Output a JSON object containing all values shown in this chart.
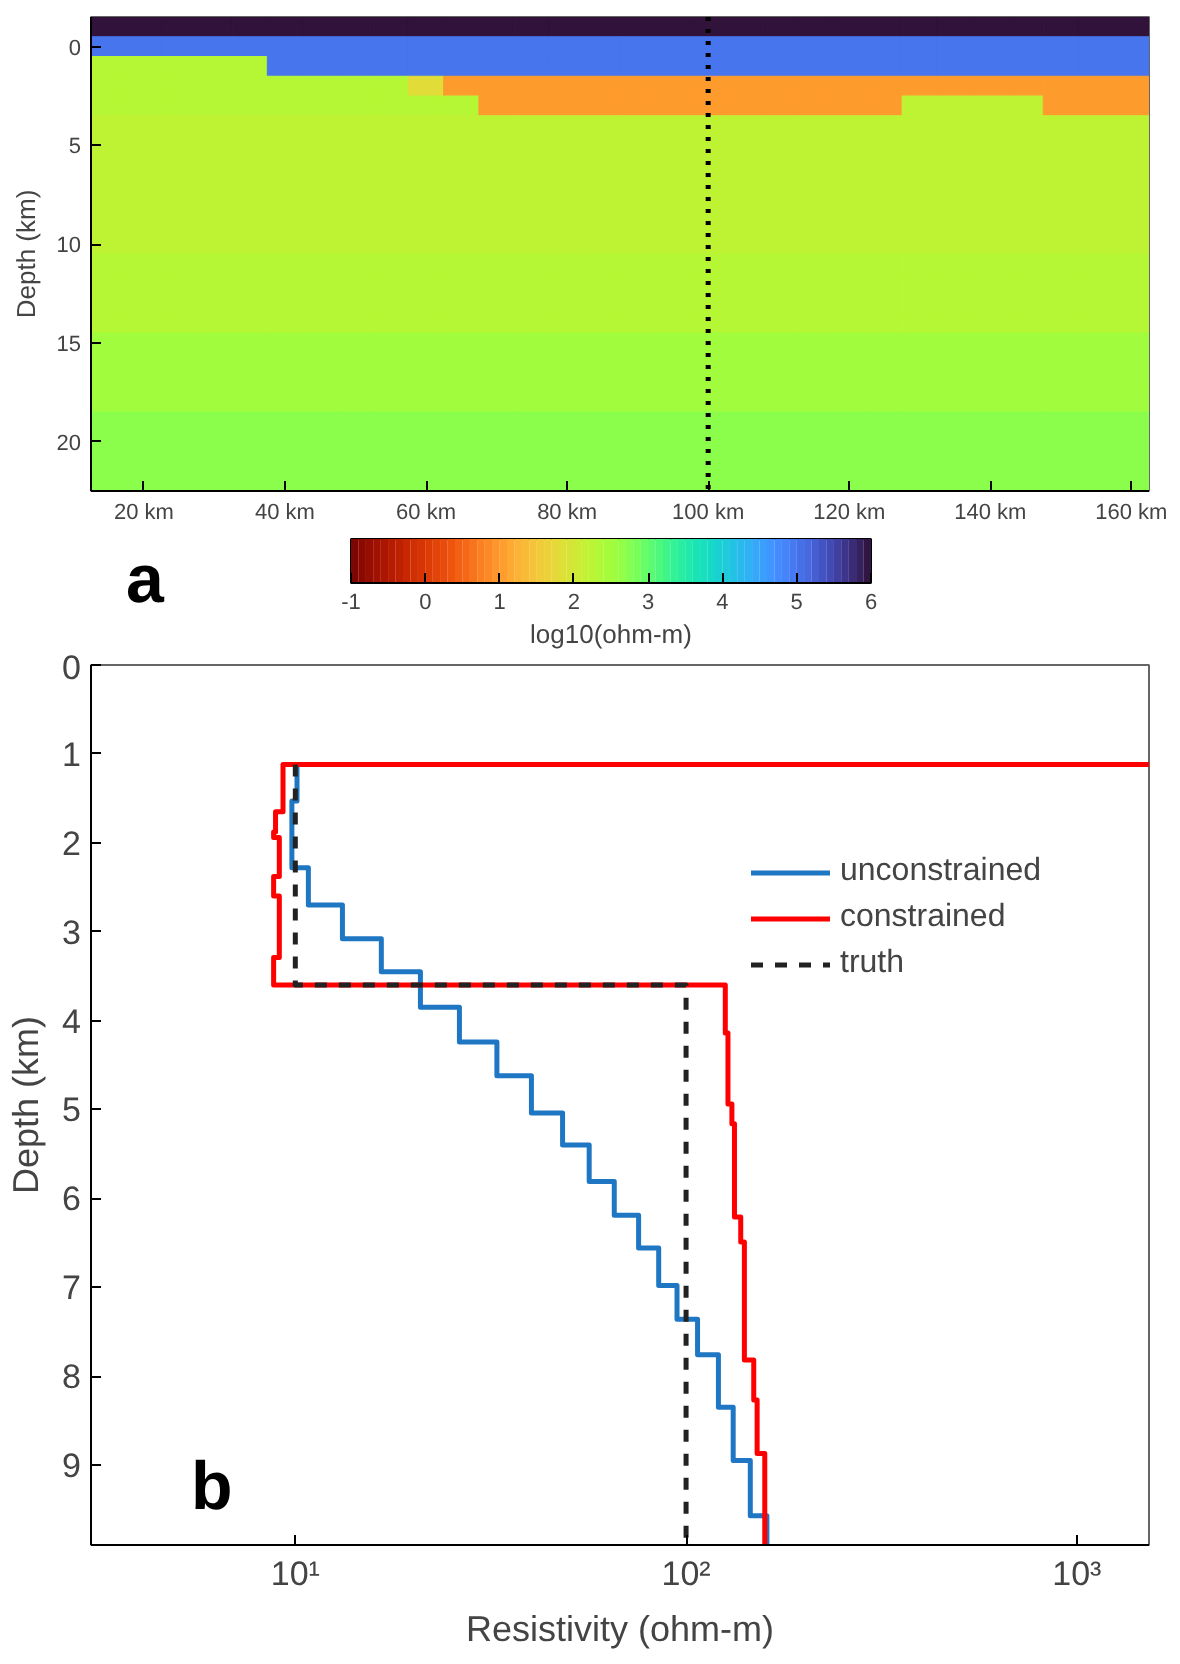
{
  "chart_data": [
    {
      "type": "heatmap",
      "ylabel": "Depth (km)",
      "clabel": "log10(ohm-m)",
      "categories": [
        null,
        "20 km",
        null,
        null,
        null,
        "40 km",
        null,
        null,
        null,
        "60 km",
        null,
        null,
        null,
        "80 km",
        null,
        null,
        null,
        "100 km",
        null,
        null,
        null,
        "120 km",
        null,
        null,
        null,
        "140 km",
        null,
        null,
        null,
        "160 km"
      ],
      "y_categories": [
        null,
        "0",
        null,
        null,
        null,
        null,
        "5",
        null,
        null,
        null,
        null,
        "10",
        null,
        null,
        null,
        null,
        "15",
        null,
        null,
        null,
        null,
        "20",
        null,
        null
      ],
      "cells": [
        [
          6,
          6,
          6,
          6,
          6,
          6,
          6,
          6,
          6,
          6,
          6,
          6,
          6,
          6,
          6,
          6,
          6,
          6,
          6,
          6,
          6,
          6,
          6,
          6,
          6,
          6,
          6,
          6,
          6,
          6
        ],
        [
          5,
          5,
          5,
          5,
          5,
          5,
          5,
          5,
          5,
          5,
          5,
          5,
          5,
          5,
          5,
          5,
          5,
          5,
          5,
          5,
          5,
          5,
          5,
          5,
          5,
          5,
          5,
          5,
          5,
          5
        ],
        [
          2.3,
          2.3,
          2.3,
          2.3,
          2.3,
          5,
          5,
          5,
          5,
          5,
          5,
          5,
          5,
          5,
          5,
          5,
          5,
          5,
          5,
          5,
          5,
          5,
          5,
          5,
          5,
          5,
          5,
          5,
          5,
          5
        ],
        [
          2.3,
          2.3,
          2.3,
          2.3,
          2.3,
          2.3,
          2.3,
          2.3,
          2.3,
          1.8,
          1.0,
          1.0,
          1.0,
          1.0,
          1.0,
          1.0,
          1.0,
          1.0,
          1.0,
          1.0,
          1.0,
          1.0,
          1.0,
          1.0,
          1.0,
          1.0,
          1.0,
          1.0,
          1.0,
          1.0
        ],
        [
          2.3,
          2.3,
          2.3,
          2.3,
          2.3,
          2.3,
          2.3,
          2.3,
          2.3,
          2.3,
          2.3,
          1.0,
          1.0,
          1.0,
          1.0,
          1.0,
          1.0,
          1.0,
          1.0,
          1.0,
          1.0,
          1.0,
          1.0,
          2.2,
          2.2,
          2.2,
          2.2,
          1.0,
          1.0,
          1.0
        ],
        [
          2.2,
          2.2,
          2.2,
          2.2,
          2.2,
          2.2,
          2.2,
          2.2,
          2.2,
          2.2,
          2.2,
          2.2,
          2.2,
          2.2,
          2.2,
          2.2,
          2.2,
          2.2,
          2.2,
          2.2,
          2.2,
          2.2,
          2.2,
          2.2,
          2.2,
          2.2,
          2.2,
          2.2,
          2.2,
          2.2
        ],
        [
          2.2,
          2.2,
          2.2,
          2.2,
          2.2,
          2.2,
          2.2,
          2.2,
          2.2,
          2.2,
          2.2,
          2.2,
          2.2,
          2.2,
          2.2,
          2.2,
          2.2,
          2.2,
          2.2,
          2.2,
          2.2,
          2.2,
          2.2,
          2.2,
          2.2,
          2.2,
          2.2,
          2.2,
          2.2,
          2.2
        ],
        [
          2.2,
          2.2,
          2.2,
          2.2,
          2.2,
          2.2,
          2.2,
          2.2,
          2.2,
          2.2,
          2.2,
          2.2,
          2.2,
          2.2,
          2.2,
          2.2,
          2.2,
          2.2,
          2.2,
          2.2,
          2.2,
          2.2,
          2.2,
          2.2,
          2.2,
          2.2,
          2.2,
          2.2,
          2.2,
          2.2
        ],
        [
          2.2,
          2.2,
          2.2,
          2.2,
          2.2,
          2.2,
          2.2,
          2.2,
          2.2,
          2.2,
          2.2,
          2.2,
          2.2,
          2.2,
          2.2,
          2.2,
          2.2,
          2.2,
          2.2,
          2.2,
          2.2,
          2.2,
          2.2,
          2.2,
          2.2,
          2.2,
          2.2,
          2.2,
          2.2,
          2.2
        ],
        [
          2.2,
          2.2,
          2.2,
          2.2,
          2.2,
          2.2,
          2.2,
          2.2,
          2.2,
          2.2,
          2.2,
          2.2,
          2.2,
          2.2,
          2.2,
          2.2,
          2.2,
          2.2,
          2.2,
          2.2,
          2.2,
          2.2,
          2.2,
          2.2,
          2.2,
          2.2,
          2.2,
          2.2,
          2.2,
          2.2
        ],
        [
          2.2,
          2.2,
          2.2,
          2.2,
          2.2,
          2.2,
          2.2,
          2.2,
          2.2,
          2.2,
          2.2,
          2.2,
          2.2,
          2.2,
          2.2,
          2.2,
          2.2,
          2.2,
          2.2,
          2.2,
          2.2,
          2.2,
          2.2,
          2.2,
          2.2,
          2.2,
          2.2,
          2.2,
          2.2,
          2.2
        ],
        [
          2.2,
          2.2,
          2.2,
          2.2,
          2.2,
          2.2,
          2.2,
          2.2,
          2.2,
          2.2,
          2.2,
          2.2,
          2.2,
          2.2,
          2.2,
          2.2,
          2.2,
          2.2,
          2.2,
          2.2,
          2.2,
          2.2,
          2.2,
          2.2,
          2.2,
          2.2,
          2.2,
          2.2,
          2.2,
          2.2
        ],
        [
          2.3,
          2.3,
          2.3,
          2.3,
          2.3,
          2.3,
          2.3,
          2.3,
          2.3,
          2.3,
          2.3,
          2.3,
          2.3,
          2.3,
          2.3,
          2.3,
          2.3,
          2.3,
          2.3,
          2.3,
          2.3,
          2.3,
          2.3,
          2.3,
          2.3,
          2.3,
          2.3,
          2.3,
          2.3,
          2.3
        ],
        [
          2.3,
          2.3,
          2.3,
          2.3,
          2.3,
          2.3,
          2.3,
          2.3,
          2.3,
          2.3,
          2.3,
          2.3,
          2.3,
          2.3,
          2.3,
          2.3,
          2.3,
          2.3,
          2.3,
          2.3,
          2.3,
          2.3,
          2.3,
          2.3,
          2.3,
          2.3,
          2.3,
          2.3,
          2.3,
          2.3
        ],
        [
          2.3,
          2.3,
          2.3,
          2.3,
          2.3,
          2.3,
          2.3,
          2.3,
          2.3,
          2.3,
          2.3,
          2.3,
          2.3,
          2.3,
          2.3,
          2.3,
          2.3,
          2.3,
          2.3,
          2.3,
          2.3,
          2.3,
          2.3,
          2.3,
          2.3,
          2.3,
          2.3,
          2.3,
          2.3,
          2.3
        ],
        [
          2.3,
          2.3,
          2.3,
          2.3,
          2.3,
          2.3,
          2.3,
          2.3,
          2.3,
          2.3,
          2.3,
          2.3,
          2.3,
          2.3,
          2.3,
          2.3,
          2.3,
          2.3,
          2.3,
          2.3,
          2.3,
          2.3,
          2.3,
          2.3,
          2.3,
          2.3,
          2.3,
          2.3,
          2.3,
          2.3
        ],
        [
          2.5,
          2.5,
          2.5,
          2.5,
          2.5,
          2.5,
          2.5,
          2.5,
          2.5,
          2.5,
          2.5,
          2.5,
          2.5,
          2.5,
          2.5,
          2.5,
          2.5,
          2.5,
          2.5,
          2.5,
          2.5,
          2.5,
          2.5,
          2.5,
          2.5,
          2.5,
          2.5,
          2.5,
          2.5,
          2.5
        ],
        [
          2.5,
          2.5,
          2.5,
          2.5,
          2.5,
          2.5,
          2.5,
          2.5,
          2.5,
          2.5,
          2.5,
          2.5,
          2.5,
          2.5,
          2.5,
          2.5,
          2.5,
          2.5,
          2.5,
          2.5,
          2.5,
          2.5,
          2.5,
          2.5,
          2.5,
          2.5,
          2.5,
          2.5,
          2.5,
          2.5
        ],
        [
          2.5,
          2.5,
          2.5,
          2.5,
          2.5,
          2.5,
          2.5,
          2.5,
          2.5,
          2.5,
          2.5,
          2.5,
          2.5,
          2.5,
          2.5,
          2.5,
          2.5,
          2.5,
          2.5,
          2.5,
          2.5,
          2.5,
          2.5,
          2.5,
          2.5,
          2.5,
          2.5,
          2.5,
          2.5,
          2.5
        ],
        [
          2.5,
          2.5,
          2.5,
          2.5,
          2.5,
          2.5,
          2.5,
          2.5,
          2.5,
          2.5,
          2.5,
          2.5,
          2.5,
          2.5,
          2.5,
          2.5,
          2.5,
          2.5,
          2.5,
          2.5,
          2.5,
          2.5,
          2.5,
          2.5,
          2.5,
          2.5,
          2.5,
          2.5,
          2.5,
          2.5
        ],
        [
          2.7,
          2.7,
          2.7,
          2.7,
          2.7,
          2.7,
          2.7,
          2.7,
          2.7,
          2.7,
          2.7,
          2.7,
          2.7,
          2.7,
          2.7,
          2.7,
          2.7,
          2.7,
          2.7,
          2.7,
          2.7,
          2.7,
          2.7,
          2.7,
          2.7,
          2.7,
          2.7,
          2.7,
          2.7,
          2.7
        ],
        [
          2.7,
          2.7,
          2.7,
          2.7,
          2.7,
          2.7,
          2.7,
          2.7,
          2.7,
          2.7,
          2.7,
          2.7,
          2.7,
          2.7,
          2.7,
          2.7,
          2.7,
          2.7,
          2.7,
          2.7,
          2.7,
          2.7,
          2.7,
          2.7,
          2.7,
          2.7,
          2.7,
          2.7,
          2.7,
          2.7
        ],
        [
          2.7,
          2.7,
          2.7,
          2.7,
          2.7,
          2.7,
          2.7,
          2.7,
          2.7,
          2.7,
          2.7,
          2.7,
          2.7,
          2.7,
          2.7,
          2.7,
          2.7,
          2.7,
          2.7,
          2.7,
          2.7,
          2.7,
          2.7,
          2.7,
          2.7,
          2.7,
          2.7,
          2.7,
          2.7,
          2.7
        ],
        [
          2.7,
          2.7,
          2.7,
          2.7,
          2.7,
          2.7,
          2.7,
          2.7,
          2.7,
          2.7,
          2.7,
          2.7,
          2.7,
          2.7,
          2.7,
          2.7,
          2.7,
          2.7,
          2.7,
          2.7,
          2.7,
          2.7,
          2.7,
          2.7,
          2.7,
          2.7,
          2.7,
          2.7,
          2.7,
          2.7
        ]
      ],
      "clim": [
        -1,
        6
      ],
      "cticks": [
        -1,
        0,
        1,
        2,
        3,
        4,
        5,
        6
      ],
      "ref_lines": [
        {
          "axis": "x",
          "value": "100 km",
          "color": "#000000",
          "line_style": "dotted"
        }
      ],
      "annotations": [
        "a"
      ]
    },
    {
      "type": "line",
      "xlabel": "Resistivity (ohm-m)",
      "ylabel": "Depth (km)",
      "log": "x",
      "xlim": [
        3,
        1530
      ],
      "xticks": [
        {
          "value": 10,
          "label": "10¹"
        },
        {
          "value": 100,
          "label": "10²"
        },
        {
          "value": 1000,
          "label": "10³"
        }
      ],
      "ylim": [
        9.9,
        0
      ],
      "yticks": [
        0,
        1,
        2,
        3,
        4,
        5,
        6,
        7,
        8,
        9
      ],
      "legend": "top right",
      "series": [
        {
          "name": "unconstrained",
          "color": "#1f77c4",
          "line_style": "solid",
          "x": [
            10.1,
            10.1,
            9.8,
            9.8,
            10.8,
            10.8,
            13.2,
            13.2,
            16.6,
            16.6,
            20.9,
            20.9,
            26.3,
            26.3,
            32.8,
            32.8,
            40.2,
            40.2,
            48.3,
            48.3,
            56.5,
            56.5,
            65.5,
            65.5,
            75.6,
            75.6,
            85.1,
            85.1,
            94.8,
            94.8,
            107,
            107,
            121,
            121,
            132,
            132,
            146,
            146,
            161,
            161
          ],
          "values": [
            1.12,
            1.53,
            1.53,
            2.28,
            2.28,
            2.7,
            2.7,
            3.08,
            3.08,
            3.45,
            3.45,
            3.85,
            3.85,
            4.24,
            4.24,
            4.62,
            4.62,
            5.04,
            5.04,
            5.4,
            5.4,
            5.81,
            5.81,
            6.19,
            6.19,
            6.56,
            6.56,
            6.98,
            6.98,
            7.36,
            7.36,
            7.76,
            7.76,
            8.35,
            8.35,
            8.95,
            8.95,
            9.57,
            9.57,
            9.9
          ]
        },
        {
          "name": "constrained",
          "color": "#ff0000",
          "line_style": "solid",
          "x": [
            1530,
            9.3,
            9.3,
            8.9,
            8.9,
            8.8,
            8.8,
            9.1,
            9.1,
            8.8,
            8.8,
            9.1,
            9.1,
            8.8,
            8.8,
            126,
            126,
            128,
            128,
            131,
            131,
            133,
            133,
            138,
            138,
            141,
            141,
            149,
            149,
            152,
            152,
            159,
            159
          ],
          "values": [
            1.12,
            1.12,
            1.65,
            1.65,
            1.88,
            1.88,
            1.94,
            1.94,
            2.38,
            2.38,
            2.6,
            2.6,
            3.29,
            3.29,
            3.6,
            3.6,
            4.14,
            4.14,
            4.94,
            4.94,
            5.16,
            5.16,
            6.21,
            6.21,
            6.49,
            6.49,
            7.82,
            7.82,
            8.27,
            8.27,
            8.87,
            8.87,
            9.9
          ]
        },
        {
          "name": "truth",
          "color": "#222222",
          "line_style": "dashed",
          "x": [
            10,
            10,
            100,
            100
          ],
          "values": [
            1.12,
            3.6,
            3.6,
            9.9
          ]
        }
      ],
      "annotations": [
        "b"
      ]
    }
  ]
}
